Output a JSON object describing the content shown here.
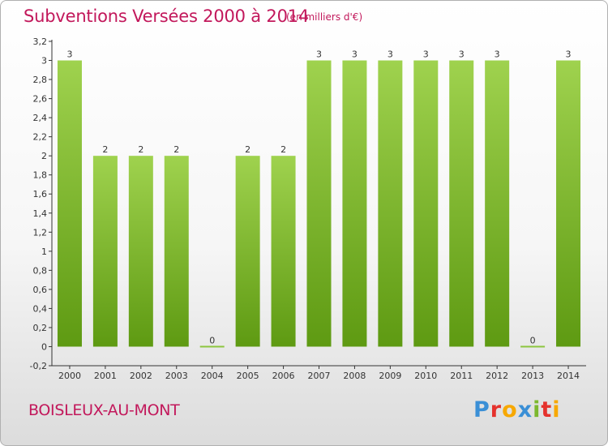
{
  "header": {
    "title": "Subventions Versées 2000 à 2014",
    "unit": "(en milliers d'€)"
  },
  "footer": {
    "town": "BOISLEUX-AU-MONT",
    "logo": "Proxiti"
  },
  "colors": {
    "title": "#c2185b",
    "bar_top": "#9fd24e",
    "bar_bottom": "#5e9a12",
    "zero_bar": "#8cc63f"
  },
  "chart_data": {
    "type": "bar",
    "title": "Subventions Versées 2000 à 2014",
    "subtitle": "(en milliers d'€)",
    "xlabel": "",
    "ylabel": "",
    "categories": [
      "2000",
      "2001",
      "2002",
      "2003",
      "2004",
      "2005",
      "2006",
      "2007",
      "2008",
      "2009",
      "2010",
      "2011",
      "2012",
      "2013",
      "2014"
    ],
    "values": [
      3,
      2,
      2,
      2,
      0,
      2,
      2,
      3,
      3,
      3,
      3,
      3,
      3,
      0,
      3
    ],
    "data_labels": [
      "3",
      "2",
      "2",
      "2",
      "0",
      "2",
      "2",
      "3",
      "3",
      "3",
      "3",
      "3",
      "3",
      "0",
      "3"
    ],
    "ylim": [
      -0.2,
      3.2
    ],
    "yticks": [
      "-0,2",
      "0",
      "0,2",
      "0,4",
      "0,6",
      "0,8",
      "1",
      "1,2",
      "1,4",
      "1,6",
      "1,8",
      "2",
      "2,2",
      "2,4",
      "2,6",
      "2,8",
      "3",
      "3,2"
    ],
    "grid": false,
    "legend": "none"
  }
}
